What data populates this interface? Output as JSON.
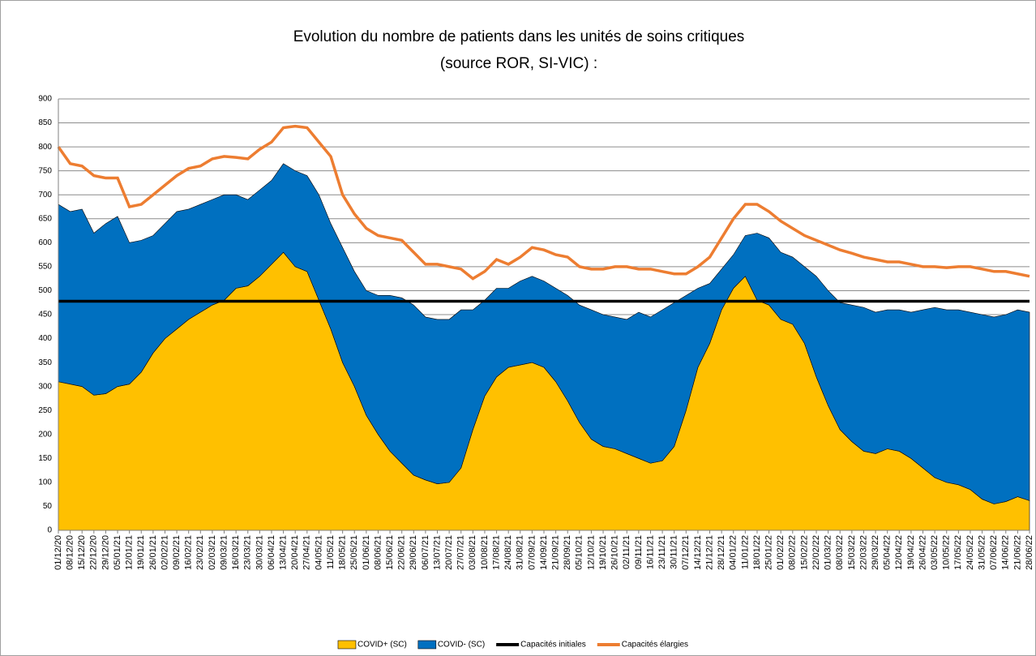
{
  "chart_data": {
    "type": "stacked_area",
    "title": "Evolution du nombre de patients dans les unités de soins critiques",
    "subtitle": "(source ROR, SI-VIC) :",
    "categories": [
      "01/12/20",
      "08/12/20",
      "15/12/20",
      "22/12/20",
      "29/12/20",
      "05/01/21",
      "12/01/21",
      "19/01/21",
      "26/01/21",
      "02/02/21",
      "09/02/21",
      "16/02/21",
      "23/02/21",
      "02/03/21",
      "09/03/21",
      "16/03/21",
      "23/03/21",
      "30/03/21",
      "06/04/21",
      "13/04/21",
      "20/04/21",
      "27/04/21",
      "04/05/21",
      "11/05/21",
      "18/05/21",
      "25/05/21",
      "01/06/21",
      "08/06/21",
      "15/06/21",
      "22/06/21",
      "29/06/21",
      "06/07/21",
      "13/07/21",
      "20/07/21",
      "27/07/21",
      "03/08/21",
      "10/08/21",
      "17/08/21",
      "24/08/21",
      "31/08/21",
      "07/09/21",
      "14/09/21",
      "21/09/21",
      "28/09/21",
      "05/10/21",
      "12/10/21",
      "19/10/21",
      "26/10/21",
      "02/11/21",
      "09/11/21",
      "16/11/21",
      "23/11/21",
      "30/11/21",
      "07/12/21",
      "14/12/21",
      "21/12/21",
      "28/12/21",
      "04/01/22",
      "11/01/22",
      "18/01/22",
      "25/01/22",
      "01/02/22",
      "08/02/22",
      "15/02/22",
      "22/02/22",
      "01/03/22",
      "08/03/22",
      "15/03/22",
      "22/03/22",
      "29/03/22",
      "05/04/22",
      "12/04/22",
      "19/04/22",
      "26/04/22",
      "03/05/22",
      "10/05/22",
      "17/05/22",
      "24/05/22",
      "31/05/22",
      "07/06/22",
      "14/06/22",
      "21/06/22",
      "28/06/22"
    ],
    "series": [
      {
        "name": "COVID+ (SC)",
        "color": "#ffc000",
        "kind": "area",
        "values": [
          310,
          305,
          300,
          282,
          285,
          300,
          305,
          330,
          370,
          400,
          420,
          440,
          455,
          470,
          480,
          505,
          510,
          530,
          555,
          580,
          550,
          540,
          480,
          420,
          350,
          300,
          240,
          200,
          165,
          140,
          115,
          105,
          97,
          100,
          130,
          210,
          280,
          320,
          340,
          345,
          350,
          340,
          310,
          270,
          225,
          190,
          175,
          170,
          160,
          150,
          140,
          145,
          175,
          250,
          340,
          390,
          460,
          505,
          530,
          480,
          470,
          440,
          430,
          390,
          320,
          260,
          210,
          185,
          165,
          160,
          170,
          165,
          150,
          130,
          110,
          100,
          95,
          85,
          65,
          55,
          60,
          70,
          62
        ]
      },
      {
        "name": "COVID- (SC)",
        "color": "#0070c0",
        "kind": "area",
        "values": [
          370,
          360,
          370,
          338,
          355,
          355,
          295,
          275,
          245,
          240,
          245,
          230,
          225,
          220,
          220,
          195,
          180,
          180,
          175,
          185,
          200,
          200,
          220,
          220,
          240,
          240,
          260,
          290,
          325,
          345,
          355,
          340,
          343,
          340,
          330,
          250,
          200,
          185,
          165,
          175,
          180,
          180,
          195,
          220,
          245,
          270,
          275,
          275,
          280,
          305,
          305,
          315,
          300,
          240,
          165,
          125,
          85,
          70,
          85,
          140,
          140,
          140,
          140,
          160,
          210,
          240,
          265,
          285,
          300,
          295,
          290,
          295,
          305,
          330,
          355,
          360,
          365,
          370,
          385,
          390,
          390,
          390,
          393
        ]
      },
      {
        "name": "Capacités initiales",
        "color": "#000000",
        "kind": "line",
        "values": [
          478,
          478,
          478,
          478,
          478,
          478,
          478,
          478,
          478,
          478,
          478,
          478,
          478,
          478,
          478,
          478,
          478,
          478,
          478,
          478,
          478,
          478,
          478,
          478,
          478,
          478,
          478,
          478,
          478,
          478,
          478,
          478,
          478,
          478,
          478,
          478,
          478,
          478,
          478,
          478,
          478,
          478,
          478,
          478,
          478,
          478,
          478,
          478,
          478,
          478,
          478,
          478,
          478,
          478,
          478,
          478,
          478,
          478,
          478,
          478,
          478,
          478,
          478,
          478,
          478,
          478,
          478,
          478,
          478,
          478,
          478,
          478,
          478,
          478,
          478,
          478,
          478,
          478,
          478,
          478,
          478,
          478,
          478
        ]
      },
      {
        "name": "Capacités élargies",
        "color": "#ed7d31",
        "kind": "line",
        "values": [
          800,
          765,
          760,
          740,
          735,
          735,
          675,
          680,
          700,
          720,
          740,
          755,
          760,
          775,
          780,
          778,
          775,
          795,
          810,
          840,
          843,
          840,
          810,
          780,
          700,
          660,
          630,
          615,
          610,
          605,
          580,
          555,
          555,
          550,
          545,
          525,
          540,
          565,
          555,
          570,
          590,
          585,
          575,
          570,
          550,
          545,
          545,
          550,
          550,
          545,
          545,
          540,
          535,
          535,
          550,
          570,
          610,
          650,
          680,
          680,
          665,
          645,
          630,
          615,
          605,
          595,
          585,
          578,
          570,
          565,
          560,
          560,
          555,
          550,
          550,
          548,
          550,
          550,
          545,
          540,
          540,
          535,
          530
        ]
      }
    ],
    "ylim": [
      0,
      900
    ],
    "yticks": [
      0,
      50,
      100,
      150,
      200,
      250,
      300,
      350,
      400,
      450,
      500,
      550,
      600,
      650,
      700,
      750,
      800,
      850,
      900
    ],
    "grid": true,
    "legend": "bottom"
  }
}
